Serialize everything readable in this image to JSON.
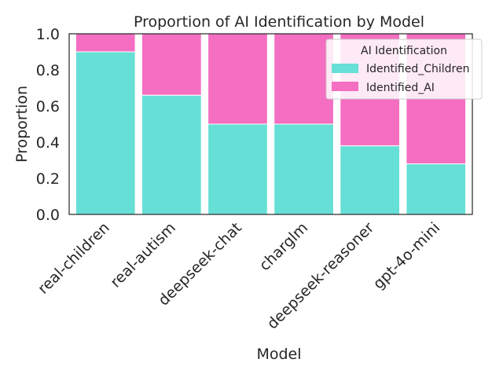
{
  "chart_data": {
    "type": "bar",
    "stacked": true,
    "title": "Proportion of AI Identification by Model",
    "xlabel": "Model",
    "ylabel": "Proportion",
    "ylim": [
      0,
      1.0
    ],
    "yticks": [
      "0.0",
      "0.2",
      "0.4",
      "0.6",
      "0.8",
      "1.0"
    ],
    "categories": [
      "real-children",
      "real-autism",
      "deepseek-chat",
      "charglm",
      "deepseek-reasoner",
      "gpt-4o-mini"
    ],
    "series": [
      {
        "name": "Identified_Children",
        "color": "#66dfd6",
        "values": [
          0.9,
          0.66,
          0.5,
          0.5,
          0.38,
          0.28
        ]
      },
      {
        "name": "Identified_AI",
        "color": "#f46ec1",
        "values": [
          0.1,
          0.34,
          0.5,
          0.5,
          0.62,
          0.72
        ]
      }
    ],
    "legend": {
      "title": "AI Identification",
      "placement": "top-right"
    },
    "grid": false
  }
}
